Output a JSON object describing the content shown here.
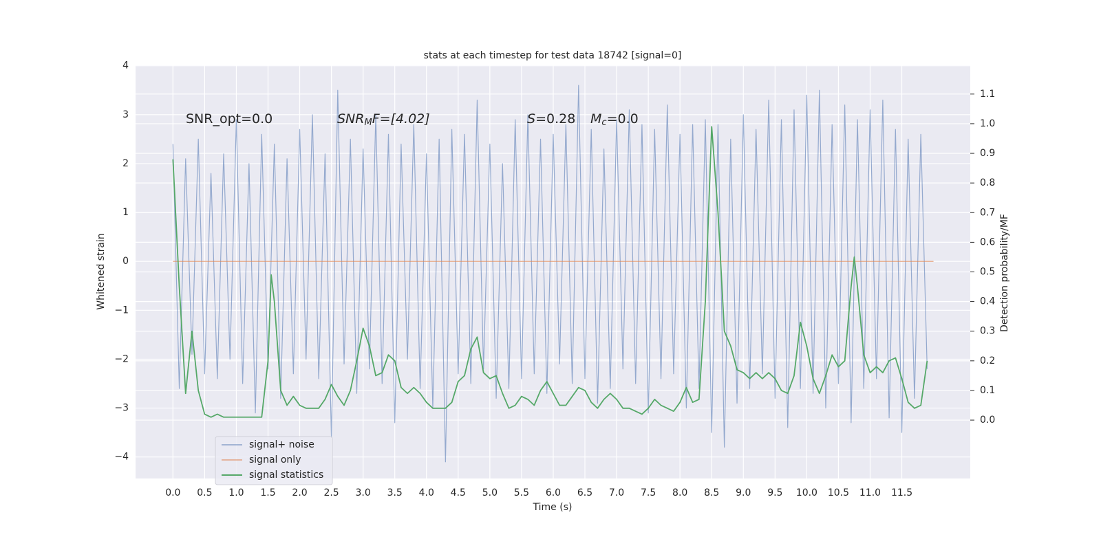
{
  "chart_data": {
    "type": "line",
    "title": "stats at each timestep for test data 18742 [signal=0]",
    "xlabel": "Time (s)",
    "ylabel": "Whitened strain",
    "y2label": "Detection probability/MF",
    "annotations": [
      [
        "SNR_opt=0.0"
      ],
      [
        "SNR",
        "M",
        "F=[4.02]"
      ],
      [
        "S",
        "=0.28"
      ],
      [
        "M",
        "c",
        "=0.0"
      ]
    ],
    "xlim": [
      -0.59,
      12.58
    ],
    "ylim": [
      -4.44,
      4.01
    ],
    "y2lim": [
      -0.197,
      1.197
    ],
    "xticks": [
      {
        "value": 0,
        "label": "0.0"
      },
      0.5,
      {
        "value": 1,
        "label": "1.0"
      },
      1.5,
      {
        "value": 2,
        "label": "2.0"
      },
      2.5,
      {
        "value": 3,
        "label": "3.0"
      },
      3.5,
      {
        "value": 4,
        "label": "4.0"
      },
      4.5,
      {
        "value": 5,
        "label": "5.0"
      },
      5.5,
      {
        "value": 6,
        "label": "6.0"
      },
      6.5,
      {
        "value": 7,
        "label": "7.0"
      },
      7.5,
      {
        "value": 8,
        "label": "8.0"
      },
      8.5,
      {
        "value": 9,
        "label": "9.0"
      },
      9.5,
      {
        "value": 10,
        "label": "10.0"
      },
      10.5,
      {
        "value": 11,
        "label": "11.0"
      },
      11.5
    ],
    "yticks": [
      {
        "value": -4,
        "label": "−4"
      },
      {
        "value": -3,
        "label": "−3"
      },
      {
        "value": -2,
        "label": "−2"
      },
      {
        "value": -1,
        "label": "−1"
      },
      0,
      1,
      2,
      3,
      4
    ],
    "y2ticks": [
      {
        "value": 0,
        "label": "0.0"
      },
      0.1,
      0.2,
      0.3,
      0.4,
      0.5,
      0.6,
      0.7,
      0.8,
      0.9,
      {
        "value": 1,
        "label": "1.0"
      },
      1.1
    ],
    "grid": true,
    "series": [
      {
        "name": "signal+ noise",
        "color": "#4c72b0",
        "axis": "y",
        "x": [
          0,
          0.1,
          0.2,
          0.3,
          0.4,
          0.5,
          0.6,
          0.7,
          0.8,
          0.9,
          1,
          1.1,
          1.2,
          1.3,
          1.4,
          1.5,
          1.6,
          1.7,
          1.8,
          1.9,
          2,
          2.1,
          2.2,
          2.3,
          2.4,
          2.5,
          2.6,
          2.7,
          2.8,
          2.9,
          3,
          3.1,
          3.2,
          3.3,
          3.4,
          3.5,
          3.6,
          3.7,
          3.8,
          3.9,
          4,
          4.1,
          4.2,
          4.3,
          4.4,
          4.5,
          4.6,
          4.7,
          4.8,
          4.9,
          5,
          5.1,
          5.2,
          5.3,
          5.4,
          5.5,
          5.6,
          5.7,
          5.8,
          5.9,
          6,
          6.1,
          6.2,
          6.3,
          6.4,
          6.5,
          6.6,
          6.7,
          6.8,
          6.9,
          7,
          7.1,
          7.2,
          7.3,
          7.4,
          7.5,
          7.6,
          7.7,
          7.8,
          7.9,
          8,
          8.1,
          8.2,
          8.3,
          8.4,
          8.5,
          8.6,
          8.7,
          8.8,
          8.9,
          9,
          9.1,
          9.2,
          9.3,
          9.4,
          9.5,
          9.6,
          9.7,
          9.8,
          9.9,
          10,
          10.1,
          10.2,
          10.3,
          10.4,
          10.5,
          10.6,
          10.7,
          10.8,
          10.9,
          11,
          11.1,
          11.2,
          11.3,
          11.4,
          11.5,
          11.6,
          11.7,
          11.8,
          11.9
        ],
        "values": [
          2.4,
          -2.6,
          2.1,
          -1.9,
          2.5,
          -2.3,
          1.8,
          -2.4,
          2.2,
          -2.0,
          2.9,
          -2.5,
          2.0,
          -3.1,
          2.6,
          -2.2,
          2.4,
          -2.8,
          2.1,
          -2.3,
          2.7,
          -2.0,
          3.0,
          -2.4,
          2.2,
          -3.6,
          3.5,
          -2.1,
          2.5,
          -2.7,
          2.3,
          -2.2,
          3.0,
          -2.5,
          2.6,
          -3.3,
          2.4,
          -2.0,
          2.8,
          -2.6,
          2.2,
          -3.0,
          2.5,
          -4.1,
          2.7,
          -2.3,
          2.6,
          -2.5,
          3.3,
          -2.2,
          2.4,
          -2.8,
          2.0,
          -2.6,
          2.9,
          -2.4,
          3.0,
          -2.3,
          2.5,
          -2.7,
          2.6,
          -2.1,
          2.8,
          -2.5,
          3.6,
          -2.4,
          2.7,
          -2.9,
          2.3,
          -2.6,
          2.9,
          -2.2,
          3.1,
          -2.5,
          2.8,
          -3.1,
          2.7,
          -2.4,
          3.2,
          -2.3,
          2.6,
          -3.0,
          2.8,
          -2.6,
          2.9,
          -3.5,
          2.8,
          -3.8,
          2.5,
          -2.9,
          3.0,
          -2.6,
          2.7,
          -2.3,
          3.3,
          -2.8,
          2.9,
          -3.4,
          3.1,
          -2.6,
          3.4,
          -2.7,
          3.5,
          -3.0,
          2.8,
          -2.5,
          3.2,
          -3.3,
          2.9,
          -2.6,
          3.1,
          -2.4,
          3.3,
          -3.2,
          2.7,
          -3.5,
          2.5,
          -2.8,
          2.6,
          -2.2
        ]
      },
      {
        "name": "signal only",
        "color": "#dd8452",
        "axis": "y",
        "x": [
          0,
          12
        ],
        "values": [
          0,
          0
        ]
      },
      {
        "name": "signal statistics",
        "color": "#55a868",
        "axis": "y2",
        "x": [
          0,
          0.1,
          0.2,
          0.3,
          0.4,
          0.5,
          0.6,
          0.7,
          0.8,
          0.9,
          1,
          1.1,
          1.2,
          1.3,
          1.4,
          1.5,
          1.55,
          1.6,
          1.7,
          1.8,
          1.9,
          2,
          2.1,
          2.2,
          2.3,
          2.4,
          2.5,
          2.6,
          2.7,
          2.8,
          2.9,
          3,
          3.1,
          3.2,
          3.3,
          3.4,
          3.5,
          3.6,
          3.7,
          3.8,
          3.9,
          4,
          4.1,
          4.2,
          4.3,
          4.4,
          4.5,
          4.6,
          4.7,
          4.8,
          4.9,
          5,
          5.1,
          5.2,
          5.3,
          5.4,
          5.5,
          5.6,
          5.7,
          5.8,
          5.9,
          6,
          6.1,
          6.2,
          6.3,
          6.4,
          6.5,
          6.6,
          6.7,
          6.8,
          6.9,
          7,
          7.1,
          7.2,
          7.3,
          7.4,
          7.5,
          7.6,
          7.7,
          7.8,
          7.9,
          8,
          8.1,
          8.2,
          8.3,
          8.4,
          8.5,
          8.6,
          8.7,
          8.8,
          8.9,
          9,
          9.1,
          9.2,
          9.3,
          9.4,
          9.5,
          9.6,
          9.7,
          9.8,
          9.9,
          10,
          10.1,
          10.2,
          10.3,
          10.4,
          10.5,
          10.6,
          10.7,
          10.75,
          10.8,
          10.9,
          11,
          11.1,
          11.2,
          11.3,
          11.4,
          11.5,
          11.6,
          11.7,
          11.8,
          11.9
        ],
        "values": [
          0.88,
          0.45,
          0.09,
          0.3,
          0.1,
          0.02,
          0.01,
          0.02,
          0.01,
          0.01,
          0.01,
          0.01,
          0.01,
          0.01,
          0.01,
          0.2,
          0.49,
          0.4,
          0.1,
          0.05,
          0.08,
          0.05,
          0.04,
          0.04,
          0.04,
          0.07,
          0.12,
          0.08,
          0.05,
          0.1,
          0.2,
          0.31,
          0.25,
          0.15,
          0.16,
          0.22,
          0.2,
          0.11,
          0.09,
          0.11,
          0.09,
          0.06,
          0.04,
          0.04,
          0.04,
          0.06,
          0.13,
          0.15,
          0.24,
          0.28,
          0.16,
          0.14,
          0.15,
          0.09,
          0.04,
          0.05,
          0.08,
          0.07,
          0.05,
          0.1,
          0.13,
          0.09,
          0.05,
          0.05,
          0.08,
          0.11,
          0.1,
          0.06,
          0.04,
          0.07,
          0.09,
          0.07,
          0.04,
          0.04,
          0.03,
          0.02,
          0.04,
          0.07,
          0.05,
          0.04,
          0.03,
          0.06,
          0.11,
          0.06,
          0.07,
          0.4,
          0.99,
          0.7,
          0.3,
          0.25,
          0.17,
          0.16,
          0.14,
          0.16,
          0.14,
          0.16,
          0.14,
          0.1,
          0.09,
          0.15,
          0.33,
          0.25,
          0.14,
          0.09,
          0.15,
          0.22,
          0.18,
          0.2,
          0.45,
          0.55,
          0.45,
          0.22,
          0.16,
          0.18,
          0.16,
          0.2,
          0.21,
          0.14,
          0.06,
          0.04,
          0.05,
          0.2
        ]
      }
    ]
  }
}
